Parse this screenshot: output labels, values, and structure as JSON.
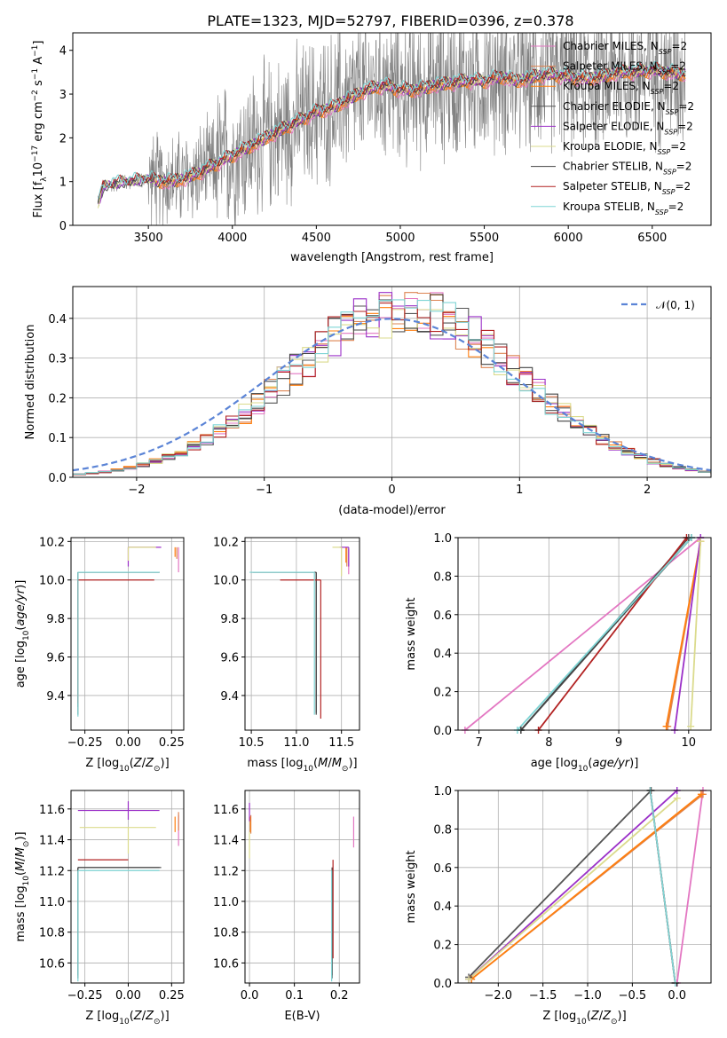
{
  "figure": {
    "title": "PLATE=1323, MJD=52797, FIBERID=0396, z=0.378"
  },
  "series": [
    {
      "name": "Chabrier MILES, N$_{SSP}$=2",
      "label": "Chabrier MILES, N",
      "sub": "SSP",
      "tail": "=2",
      "color": "#e377c2"
    },
    {
      "name": "Salpeter MILES, N$_{SSP}$=2",
      "label": "Salpeter MILES, N",
      "sub": "SSP",
      "tail": "=2",
      "color": "#dd8452"
    },
    {
      "name": "Kroupa MILES, N$_{SSP}$=2",
      "label": "Kroupa MILES, N",
      "sub": "SSP",
      "tail": "=2",
      "color": "#ff7f0e"
    },
    {
      "name": "Chabrier ELODIE, N$_{SSP}$=2",
      "label": "Chabrier ELODIE, N",
      "sub": "SSP",
      "tail": "=2",
      "color": "#555555"
    },
    {
      "name": "Salpeter ELODIE, N$_{SSP}$=2",
      "label": "Salpeter ELODIE, N",
      "sub": "SSP",
      "tail": "=2",
      "color": "#9b30c8"
    },
    {
      "name": "Kroupa ELODIE, N$_{SSP}$=2",
      "label": "Kroupa ELODIE, N",
      "sub": "SSP",
      "tail": "=2",
      "color": "#dbdb8d"
    },
    {
      "name": "Chabrier STELIB, N$_{SSP}$=2",
      "label": "Chabrier STELIB, N",
      "sub": "SSP",
      "tail": "=2",
      "color": "#444444"
    },
    {
      "name": "Salpeter STELIB, N$_{SSP}$=2",
      "label": "Salpeter STELIB, N",
      "sub": "SSP",
      "tail": "=2",
      "color": "#b22222"
    },
    {
      "name": "Kroupa STELIB, N$_{SSP}$=2",
      "label": "Kroupa STELIB, N",
      "sub": "SSP",
      "tail": "=2",
      "color": "#7fd5d5"
    }
  ],
  "chart_data": [
    {
      "id": "spectrum",
      "type": "line",
      "title": "PLATE=1323, MJD=52797, FIBERID=0396, z=0.378",
      "xlabel": "wavelength [Angstrom, rest frame]",
      "ylabel_parts": {
        "pre": "Flux [f",
        "sub": "λ",
        "mid": "10",
        "sup1": "−17",
        "post": " erg cm",
        "sup2": "−2",
        "mid2": " s",
        "sup3": "−1",
        "mid3": " A",
        "sup4": "−1",
        "end": "]"
      },
      "xlim": [
        3050,
        6850
      ],
      "ylim": [
        0,
        4.4
      ],
      "xticks": [
        3500,
        4000,
        4500,
        5000,
        5500,
        6000,
        6500
      ],
      "yticks": [
        0,
        1,
        2,
        3,
        4
      ],
      "data_color": "#808080",
      "data_range": [
        3200,
        6700
      ],
      "model_anchors": {
        "x": [
          3200,
          3230,
          3300,
          3400,
          3500,
          3600,
          3700,
          3800,
          3900,
          4000,
          4100,
          4200,
          4300,
          4400,
          4500,
          4600,
          4700,
          4800,
          4900,
          5000,
          5100,
          5200,
          5300,
          5400,
          5500,
          5600,
          5700,
          5800,
          5900,
          6000,
          6100,
          6200,
          6300,
          6400,
          6500,
          6600,
          6700
        ],
        "y": [
          0.5,
          0.85,
          0.95,
          1.0,
          1.05,
          1.0,
          1.05,
          1.2,
          1.4,
          1.6,
          1.8,
          2.0,
          2.2,
          2.4,
          2.6,
          2.7,
          2.9,
          3.1,
          3.2,
          3.1,
          3.1,
          3.2,
          3.25,
          3.3,
          3.3,
          3.4,
          3.3,
          3.4,
          3.45,
          3.4,
          3.35,
          3.4,
          3.5,
          3.5,
          3.55,
          3.5,
          3.45
        ]
      },
      "legend_loc": "upper right"
    },
    {
      "id": "residuals",
      "type": "histogram",
      "xlabel": "(data-model)/error",
      "ylabel": "Normed distribution",
      "xlim": [
        -2.5,
        2.5
      ],
      "ylim": [
        0,
        0.48
      ],
      "xticks": [
        -2,
        -1,
        0,
        1,
        2
      ],
      "yticks": [
        0.0,
        0.1,
        0.2,
        0.3,
        0.4
      ],
      "bin_width": 0.1,
      "reference": {
        "name": "𝒩(0, 1)",
        "color": "#5b84d6",
        "style": "dashed"
      },
      "legend_loc": "upper right"
    },
    {
      "id": "age-vs-Z",
      "type": "errorbar",
      "xlabel": "Z [log10(Z/Z☉)]",
      "ylabel": "age  [log10(age/yr)]",
      "xlim": [
        -0.33,
        0.32
      ],
      "ylim": [
        9.22,
        10.22
      ],
      "xticks": [
        -0.25,
        0.0,
        0.25
      ],
      "yticks": [
        9.4,
        9.6,
        9.8,
        10.0,
        10.2
      ],
      "points": [
        {
          "series": 0,
          "x": 0.29,
          "y": 10.17,
          "xerr": [
            0.0,
            0.0
          ],
          "yerr": [
            0.13,
            0.0
          ]
        },
        {
          "series": 1,
          "x": 0.28,
          "y": 10.17,
          "xerr": [
            0.0,
            0.0
          ],
          "yerr": [
            0.06,
            0.0
          ]
        },
        {
          "series": 2,
          "x": 0.27,
          "y": 10.17,
          "xerr": [
            0.0,
            0.0
          ],
          "yerr": [
            0.05,
            0.0
          ]
        },
        {
          "series": 3,
          "x": -0.29,
          "y": 10.04,
          "xerr": [
            0.0,
            0.47
          ],
          "yerr": [
            0.7,
            0.0
          ]
        },
        {
          "series": 4,
          "x": 0.0,
          "y": 10.17,
          "xerr": [
            0.0,
            0.19
          ],
          "yerr": [
            0.1,
            0.0
          ]
        },
        {
          "series": 5,
          "x": 0.0,
          "y": 10.17,
          "xerr": [
            0.0,
            0.16
          ],
          "yerr": [
            0.07,
            0.0
          ]
        },
        {
          "series": 6,
          "x": -0.29,
          "y": 10.04,
          "xerr": [
            0.0,
            0.47
          ],
          "yerr": [
            0.74,
            0.0
          ]
        },
        {
          "series": 7,
          "x": -0.29,
          "y": 10.0,
          "xerr": [
            0.0,
            0.44
          ],
          "yerr": [
            0.64,
            0.0
          ]
        },
        {
          "series": 8,
          "x": -0.29,
          "y": 10.04,
          "xerr": [
            0.0,
            0.47
          ],
          "yerr": [
            0.75,
            0.0
          ]
        }
      ]
    },
    {
      "id": "age-vs-mass",
      "type": "errorbar",
      "xlabel": "mass [log10(M/M☉)]",
      "ylabel": "",
      "xlim": [
        10.43,
        11.7
      ],
      "ylim": [
        9.22,
        10.22
      ],
      "xticks": [
        10.5,
        11.0,
        11.5
      ],
      "yticks": [
        9.4,
        9.6,
        9.8,
        10.0,
        10.2
      ],
      "points": [
        {
          "series": 0,
          "x": 11.58,
          "y": 10.16,
          "xerr": [
            0.0,
            0.0
          ],
          "yerr": [
            0.13,
            0.0
          ]
        },
        {
          "series": 1,
          "x": 11.56,
          "y": 10.17,
          "xerr": [
            0.0,
            0.0
          ],
          "yerr": [
            0.1,
            0.0
          ]
        },
        {
          "series": 2,
          "x": 11.55,
          "y": 10.17,
          "xerr": [
            0.0,
            0.0
          ],
          "yerr": [
            0.08,
            0.0
          ]
        },
        {
          "series": 3,
          "x": 11.22,
          "y": 10.04,
          "xerr": [
            0.7,
            0.0
          ],
          "yerr": [
            0.73,
            0.0
          ]
        },
        {
          "series": 4,
          "x": 11.58,
          "y": 10.17,
          "xerr": [
            0.1,
            0.0
          ],
          "yerr": [
            0.1,
            0.0
          ]
        },
        {
          "series": 5,
          "x": 11.5,
          "y": 10.17,
          "xerr": [
            0.1,
            0.0
          ],
          "yerr": [
            0.15,
            0.0
          ]
        },
        {
          "series": 6,
          "x": 11.22,
          "y": 10.04,
          "xerr": [
            0.72,
            0.0
          ],
          "yerr": [
            0.74,
            0.0
          ]
        },
        {
          "series": 7,
          "x": 11.27,
          "y": 10.0,
          "xerr": [
            0.45,
            0.0
          ],
          "yerr": [
            0.72,
            0.0
          ]
        },
        {
          "series": 8,
          "x": 11.2,
          "y": 10.04,
          "xerr": [
            0.72,
            0.0
          ],
          "yerr": [
            0.74,
            0.0
          ]
        }
      ]
    },
    {
      "id": "weight-vs-age",
      "type": "line",
      "xlabel": "age  [log10(age/yr)]",
      "ylabel": "mass weight",
      "xlim": [
        6.7,
        10.32
      ],
      "ylim": [
        0,
        1.0
      ],
      "xticks": [
        7,
        8,
        9,
        10
      ],
      "yticks": [
        0.0,
        0.2,
        0.4,
        0.6,
        0.8,
        1.0
      ],
      "lines": [
        {
          "series": 0,
          "x": [
            6.8,
            10.17
          ],
          "y": [
            0.0,
            1.0
          ]
        },
        {
          "series": 1,
          "x": [
            9.7,
            10.17
          ],
          "y": [
            0.02,
            0.98
          ]
        },
        {
          "series": 2,
          "x": [
            9.68,
            10.17
          ],
          "y": [
            0.02,
            0.98
          ]
        },
        {
          "series": 3,
          "x": [
            7.6,
            10.0
          ],
          "y": [
            0.0,
            1.0
          ]
        },
        {
          "series": 4,
          "x": [
            9.8,
            10.17
          ],
          "y": [
            0.0,
            1.0
          ]
        },
        {
          "series": 5,
          "x": [
            10.03,
            10.17
          ],
          "y": [
            0.02,
            0.98
          ]
        },
        {
          "series": 6,
          "x": [
            7.6,
            10.04
          ],
          "y": [
            0.0,
            1.0
          ]
        },
        {
          "series": 7,
          "x": [
            7.85,
            9.97
          ],
          "y": [
            0.0,
            1.0
          ]
        },
        {
          "series": 8,
          "x": [
            7.55,
            10.04
          ],
          "y": [
            0.0,
            1.0
          ]
        }
      ]
    },
    {
      "id": "mass-vs-Z",
      "type": "errorbar",
      "xlabel": "Z [log10(Z/Z☉)]",
      "ylabel": "mass [log10(M/M☉)]",
      "xlim": [
        -0.33,
        0.32
      ],
      "ylim": [
        10.47,
        11.72
      ],
      "xticks": [
        -0.25,
        0.0,
        0.25
      ],
      "yticks": [
        10.6,
        10.8,
        11.0,
        11.2,
        11.4,
        11.6
      ],
      "points": [
        {
          "series": 0,
          "x": 0.29,
          "y": 11.46,
          "xerr": [
            0.0,
            0.0
          ],
          "yerr": [
            0.1,
            0.1
          ]
        },
        {
          "series": 1,
          "x": 0.29,
          "y": 11.52,
          "xerr": [
            0.0,
            0.0
          ],
          "yerr": [
            0.06,
            0.06
          ]
        },
        {
          "series": 2,
          "x": 0.27,
          "y": 11.5,
          "xerr": [
            0.0,
            0.0
          ],
          "yerr": [
            0.05,
            0.05
          ]
        },
        {
          "series": 3,
          "x": -0.29,
          "y": 11.22,
          "xerr": [
            0.0,
            0.47
          ],
          "yerr": [
            0.7,
            0.0
          ]
        },
        {
          "series": 4,
          "x": 0.0,
          "y": 11.59,
          "xerr": [
            0.29,
            0.18
          ],
          "yerr": [
            0.06,
            0.06
          ]
        },
        {
          "series": 5,
          "x": 0.0,
          "y": 11.48,
          "xerr": [
            0.28,
            0.16
          ],
          "yerr": [
            0.17,
            0.0
          ]
        },
        {
          "series": 6,
          "x": -0.29,
          "y": 11.22,
          "xerr": [
            0.0,
            0.48
          ],
          "yerr": [
            0.72,
            0.0
          ]
        },
        {
          "series": 7,
          "x": -0.29,
          "y": 11.27,
          "xerr": [
            0.0,
            0.29
          ],
          "yerr": [
            0.0,
            0.0
          ]
        },
        {
          "series": 8,
          "x": -0.29,
          "y": 11.2,
          "xerr": [
            0.0,
            0.47
          ],
          "yerr": [
            0.72,
            0.0
          ]
        }
      ]
    },
    {
      "id": "mass-vs-ebv",
      "type": "errorbar",
      "xlabel": "E(B-V)",
      "ylabel": "",
      "xlim": [
        -0.01,
        0.245
      ],
      "ylim": [
        10.47,
        11.72
      ],
      "xticks": [
        0.0,
        0.1,
        0.2
      ],
      "yticks": [
        10.6,
        10.8,
        11.0,
        11.2,
        11.4,
        11.6
      ],
      "points": [
        {
          "series": 0,
          "x": 0.232,
          "y": 11.46,
          "xerr": [
            0.0,
            0.0
          ],
          "yerr": [
            0.11,
            0.09
          ]
        },
        {
          "series": 1,
          "x": 0.003,
          "y": 11.5,
          "xerr": [
            0.0,
            0.0
          ],
          "yerr": [
            0.06,
            0.06
          ]
        },
        {
          "series": 2,
          "x": 0.002,
          "y": 11.5,
          "xerr": [
            0.0,
            0.0
          ],
          "yerr": [
            0.05,
            0.05
          ]
        },
        {
          "series": 3,
          "x": 0.184,
          "y": 11.22,
          "xerr": [
            0.0,
            0.0
          ],
          "yerr": [
            0.7,
            0.0
          ]
        },
        {
          "series": 4,
          "x": 0.0,
          "y": 11.58,
          "xerr": [
            0.0,
            0.0
          ],
          "yerr": [
            0.06,
            0.06
          ]
        },
        {
          "series": 5,
          "x": 0.0,
          "y": 11.45,
          "xerr": [
            0.0,
            0.0
          ],
          "yerr": [
            0.17,
            0.0
          ]
        },
        {
          "series": 6,
          "x": 0.184,
          "y": 11.22,
          "xerr": [
            0.0,
            0.0
          ],
          "yerr": [
            0.72,
            0.0
          ]
        },
        {
          "series": 7,
          "x": 0.186,
          "y": 11.27,
          "xerr": [
            0.0,
            0.0
          ],
          "yerr": [
            0.64,
            0.0
          ]
        },
        {
          "series": 8,
          "x": 0.183,
          "y": 11.2,
          "xerr": [
            0.0,
            0.0
          ],
          "yerr": [
            0.72,
            0.0
          ]
        }
      ]
    },
    {
      "id": "weight-vs-Z",
      "type": "line",
      "xlabel": "Z [log10(Z/Z☉)]",
      "ylabel": "mass weight",
      "xlim": [
        -2.45,
        0.38
      ],
      "ylim": [
        0,
        1.0
      ],
      "xticks": [
        -2.0,
        -1.5,
        -1.0,
        -0.5,
        0.0
      ],
      "yticks": [
        0.0,
        0.2,
        0.4,
        0.6,
        0.8,
        1.0
      ],
      "lines": [
        {
          "series": 0,
          "x": [
            0.0,
            0.29
          ],
          "y": [
            0.0,
            1.0
          ]
        },
        {
          "series": 1,
          "x": [
            -2.3,
            0.29
          ],
          "y": [
            0.02,
            0.98
          ]
        },
        {
          "series": 2,
          "x": [
            -2.3,
            0.27
          ],
          "y": [
            0.02,
            0.98
          ]
        },
        {
          "series": 3,
          "x": [
            -2.33,
            -0.29
          ],
          "y": [
            0.03,
            1.0
          ]
        },
        {
          "series": 4,
          "x": [
            -2.33,
            0.0
          ],
          "y": [
            0.02,
            1.0
          ]
        },
        {
          "series": 5,
          "x": [
            -2.33,
            0.0
          ],
          "y": [
            0.02,
            0.96
          ]
        },
        {
          "series": 6,
          "x": [
            -0.3,
            -0.02
          ],
          "y": [
            1.0,
            0.0
          ]
        },
        {
          "series": 7,
          "x": [
            -0.3,
            -0.02
          ],
          "y": [
            1.0,
            0.0
          ]
        },
        {
          "series": 8,
          "x": [
            -0.3,
            -0.02
          ],
          "y": [
            1.0,
            0.0
          ]
        }
      ]
    }
  ]
}
